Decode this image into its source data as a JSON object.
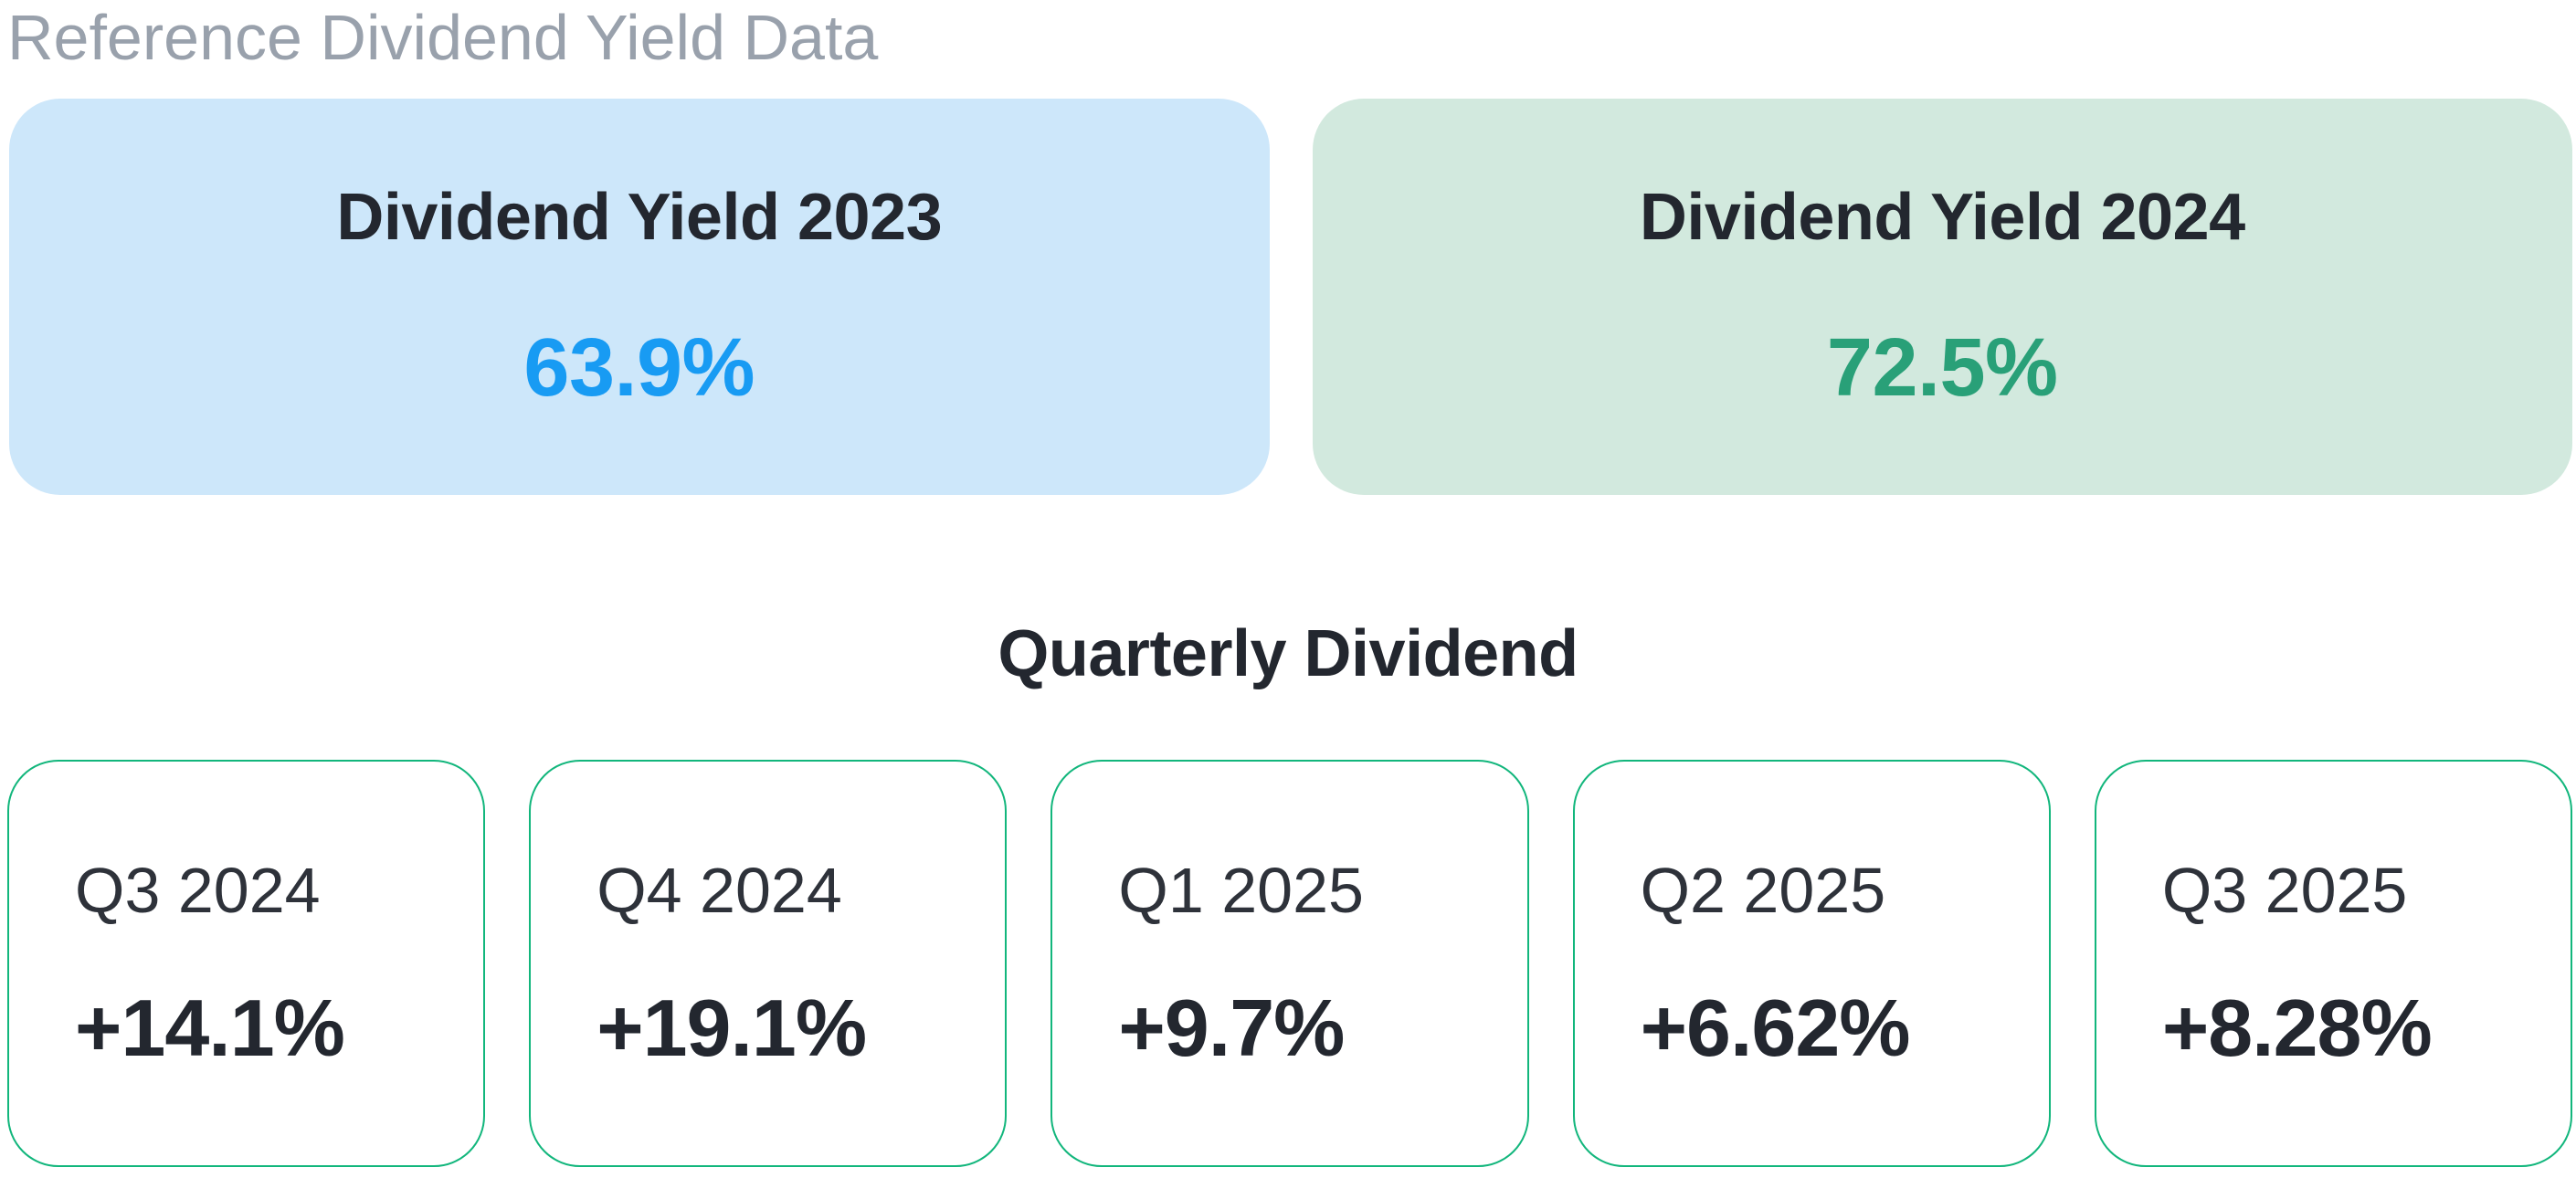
{
  "header": {
    "title": "Reference Dividend Yield Data"
  },
  "yield_cards": [
    {
      "label": "Dividend Yield 2023",
      "value": "63.9%"
    },
    {
      "label": "Dividend Yield 2024",
      "value": "72.5%"
    }
  ],
  "quarterly": {
    "heading": "Quarterly Dividend",
    "cards": [
      {
        "label": "Q3 2024",
        "value": "+14.1%"
      },
      {
        "label": "Q4 2024",
        "value": "+19.1%"
      },
      {
        "label": "Q1 2025",
        "value": "+9.7%"
      },
      {
        "label": "Q2 2025",
        "value": "+6.62%"
      },
      {
        "label": "Q3 2025",
        "value": "+8.28%"
      }
    ]
  },
  "colors": {
    "title-gray": "#99A1AC",
    "blue-bg": "#CDE7FA",
    "blue-accent": "#189BF3",
    "green-bg": "#D2E9DE",
    "green-accent": "#29A078",
    "card-border-green": "#12B67C",
    "text-dark": "#23272F",
    "text-label": "#2E323A"
  }
}
